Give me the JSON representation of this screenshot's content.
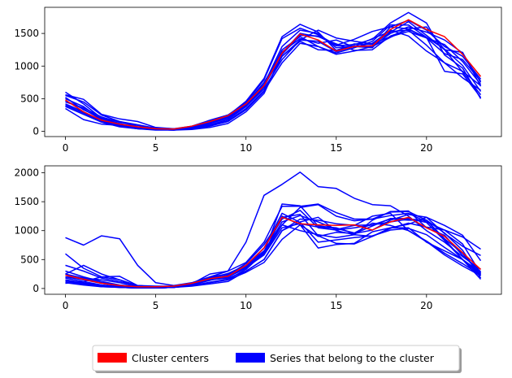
{
  "chart_data": [
    {
      "type": "line",
      "x": [
        0,
        1,
        2,
        3,
        4,
        5,
        6,
        7,
        8,
        9,
        10,
        11,
        12,
        13,
        14,
        15,
        16,
        17,
        18,
        19,
        20,
        21,
        22,
        23
      ],
      "xlim": [
        -1.15,
        24.15
      ],
      "ylim": [
        -80,
        1900
      ],
      "xticks": [
        0,
        5,
        10,
        15,
        20
      ],
      "yticks": [
        0,
        500,
        1000,
        1500
      ],
      "center": {
        "values": [
          480,
          300,
          170,
          110,
          70,
          40,
          35,
          80,
          150,
          240,
          420,
          700,
          1200,
          1490,
          1400,
          1230,
          1300,
          1310,
          1560,
          1710,
          1560,
          1450,
          1180,
          840
        ]
      },
      "members": [
        {
          "values": [
            600,
            420,
            200,
            120,
            60,
            40,
            30,
            60,
            120,
            200,
            400,
            700,
            1150,
            1400,
            1380,
            1220,
            1300,
            1280,
            1600,
            1700,
            1550,
            1300,
            1150,
            800
          ]
        },
        {
          "values": [
            550,
            450,
            250,
            150,
            100,
            50,
            40,
            60,
            100,
            180,
            380,
            650,
            1100,
            1400,
            1550,
            1430,
            1380,
            1340,
            1450,
            1530,
            1430,
            1330,
            1070,
            720
          ]
        },
        {
          "values": [
            500,
            380,
            180,
            90,
            60,
            30,
            25,
            50,
            90,
            160,
            350,
            620,
            1050,
            1350,
            1300,
            1180,
            1230,
            1300,
            1500,
            1600,
            1520,
            1400,
            1200,
            750
          ]
        },
        {
          "values": [
            450,
            360,
            220,
            140,
            90,
            40,
            30,
            70,
            140,
            220,
            420,
            750,
            1200,
            1500,
            1450,
            1340,
            1240,
            1250,
            1460,
            1560,
            1440,
            1260,
            1010,
            610
          ]
        },
        {
          "values": [
            420,
            300,
            160,
            100,
            50,
            30,
            20,
            60,
            120,
            230,
            430,
            720,
            1300,
            1550,
            1500,
            1280,
            1310,
            1300,
            1440,
            1570,
            1600,
            1250,
            1210,
            690
          ]
        },
        {
          "values": [
            400,
            280,
            150,
            80,
            40,
            30,
            20,
            40,
            80,
            150,
            330,
            610,
            1150,
            1380,
            1250,
            1240,
            1340,
            1330,
            1520,
            1680,
            1470,
            1250,
            910,
            560
          ]
        },
        {
          "values": [
            380,
            260,
            140,
            70,
            40,
            20,
            20,
            30,
            60,
            120,
            300,
            580,
            1180,
            1470,
            1460,
            1310,
            1330,
            1410,
            1660,
            1820,
            1660,
            1170,
            970,
            500
          ]
        },
        {
          "values": [
            350,
            180,
            110,
            90,
            40,
            30,
            20,
            50,
            120,
            240,
            460,
            810,
            1450,
            1640,
            1520,
            1240,
            1300,
            1420,
            1530,
            1550,
            1320,
            1050,
            820,
            630
          ]
        },
        {
          "values": [
            520,
            330,
            200,
            150,
            70,
            40,
            30,
            70,
            150,
            250,
            400,
            700,
            1250,
            1450,
            1300,
            1200,
            1280,
            1380,
            1630,
            1630,
            1440,
            920,
            880,
            520
          ]
        },
        {
          "values": [
            470,
            340,
            180,
            110,
            70,
            40,
            30,
            60,
            130,
            210,
            380,
            680,
            1220,
            1420,
            1350,
            1400,
            1290,
            1350,
            1550,
            1460,
            1230,
            1050,
            920,
            700
          ]
        },
        {
          "values": [
            560,
            490,
            260,
            190,
            150,
            60,
            40,
            80,
            170,
            250,
            440,
            790,
            1420,
            1580,
            1480,
            1320,
            1410,
            1530,
            1600,
            1570,
            1430,
            1190,
            1100,
            770
          ]
        }
      ]
    },
    {
      "type": "line",
      "x": [
        0,
        1,
        2,
        3,
        4,
        5,
        6,
        7,
        8,
        9,
        10,
        11,
        12,
        13,
        14,
        15,
        16,
        17,
        18,
        19,
        20,
        21,
        22,
        23
      ],
      "xlim": [
        -1.15,
        24.15
      ],
      "ylim": [
        -100,
        2120
      ],
      "xticks": [
        0,
        5,
        10,
        15,
        20
      ],
      "yticks": [
        0,
        500,
        1000,
        1500,
        2000
      ],
      "center": {
        "values": [
          230,
          160,
          90,
          50,
          30,
          30,
          40,
          90,
          170,
          210,
          400,
          700,
          1230,
          1120,
          1100,
          1090,
          1100,
          1010,
          1150,
          1230,
          1050,
          900,
          620,
          330
        ]
      },
      "members": [
        {
          "values": [
            880,
            750,
            910,
            860,
            400,
            100,
            50,
            100,
            200,
            300,
            800,
            1610,
            1800,
            2010,
            1760,
            1730,
            1560,
            1450,
            1430,
            1250,
            1000,
            800,
            550,
            330
          ]
        },
        {
          "values": [
            600,
            350,
            200,
            150,
            50,
            30,
            30,
            60,
            150,
            200,
            350,
            600,
            1100,
            1400,
            1450,
            1250,
            1170,
            1200,
            1320,
            1330,
            1180,
            860,
            610,
            230
          ]
        },
        {
          "values": [
            400,
            300,
            180,
            120,
            50,
            40,
            40,
            80,
            180,
            220,
            380,
            700,
            1200,
            1350,
            1050,
            1010,
            1050,
            1100,
            1150,
            1200,
            1180,
            960,
            660,
            180
          ]
        },
        {
          "values": [
            300,
            200,
            120,
            60,
            30,
            20,
            20,
            60,
            150,
            180,
            300,
            500,
            1000,
            1200,
            1180,
            1120,
            1090,
            1100,
            1200,
            1180,
            1180,
            850,
            500,
            250
          ]
        },
        {
          "values": [
            250,
            180,
            100,
            50,
            20,
            10,
            20,
            50,
            100,
            150,
            280,
            450,
            850,
            1100,
            900,
            970,
            950,
            1080,
            1210,
            1210,
            1140,
            830,
            500,
            220
          ]
        },
        {
          "values": [
            200,
            150,
            90,
            40,
            20,
            10,
            20,
            40,
            80,
            120,
            300,
            500,
            1000,
            1150,
            1230,
            1000,
            930,
            1180,
            1330,
            1340,
            1050,
            920,
            570,
            290
          ]
        },
        {
          "values": [
            180,
            120,
            60,
            30,
            20,
            10,
            20,
            50,
            110,
            160,
            330,
            620,
            1460,
            1430,
            1080,
            1050,
            950,
            1010,
            1180,
            1280,
            1230,
            1090,
            920,
            480
          ]
        },
        {
          "values": [
            150,
            100,
            50,
            20,
            10,
            10,
            20,
            60,
            150,
            200,
            350,
            600,
            1250,
            1100,
            700,
            760,
            780,
            980,
            1050,
            1050,
            800,
            650,
            500,
            280
          ]
        },
        {
          "values": [
            130,
            90,
            40,
            20,
            10,
            10,
            30,
            70,
            180,
            260,
            400,
            650,
            1100,
            1000,
            930,
            880,
            930,
            900,
            1050,
            1110,
            1230,
            950,
            730,
            570
          ]
        },
        {
          "values": [
            110,
            80,
            30,
            20,
            10,
            10,
            20,
            80,
            250,
            300,
            450,
            800,
            1420,
            1420,
            1460,
            1310,
            1200,
            1200,
            1260,
            1300,
            1150,
            1010,
            890,
            680
          ]
        },
        {
          "values": [
            100,
            60,
            30,
            20,
            10,
            10,
            20,
            70,
            200,
            250,
            400,
            700,
            1300,
            1140,
            800,
            840,
            880,
            910,
            1010,
            1040,
            930,
            710,
            500,
            160
          ]
        },
        {
          "values": [
            90,
            120,
            200,
            210,
            50,
            30,
            30,
            90,
            170,
            230,
            360,
            580,
            1050,
            1120,
            1060,
            1040,
            960,
            1130,
            1090,
            1000,
            820,
            610,
            430,
            230
          ]
        },
        {
          "values": [
            250,
            400,
            250,
            150,
            40,
            20,
            20,
            60,
            140,
            210,
            370,
            630,
            1150,
            1260,
            1150,
            1020,
            1090,
            1250,
            1300,
            1000,
            810,
            580,
            390,
            220
          ]
        },
        {
          "values": [
            200,
            180,
            150,
            100,
            30,
            30,
            30,
            70,
            160,
            230,
            430,
            760,
            1230,
            1280,
            910,
            780,
            770,
            900,
            1040,
            1130,
            1060,
            1010,
            770,
            260
          ]
        }
      ]
    }
  ],
  "legend": {
    "entries": [
      {
        "label": "Cluster centers",
        "color": "#ff0000"
      },
      {
        "label": "Series that belong to the cluster",
        "color": "#0000ff"
      }
    ],
    "placement": "bottom-center"
  },
  "colors": {
    "center": "#ff0000",
    "member": "#0000ff"
  }
}
